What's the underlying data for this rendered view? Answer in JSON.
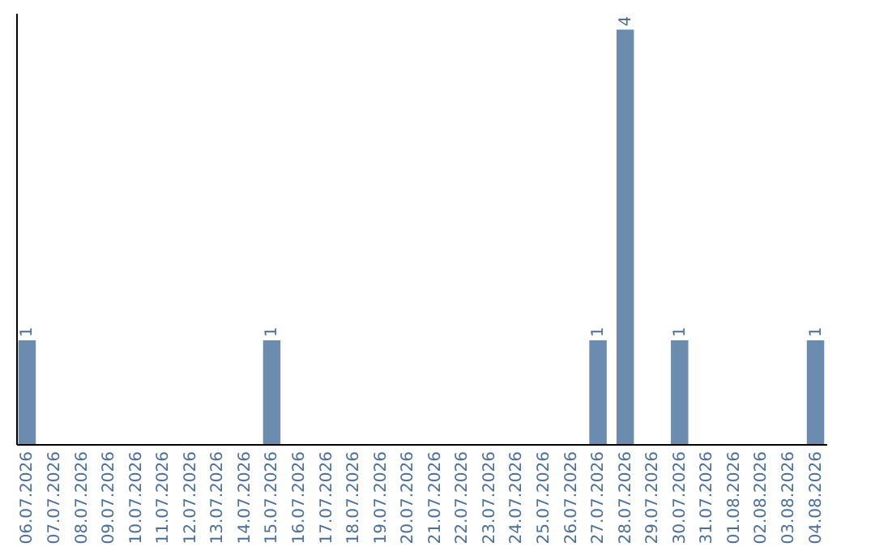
{
  "chart_data": {
    "type": "bar",
    "categories": [
      "06.07.2026",
      "07.07.2026",
      "08.07.2026",
      "09.07.2026",
      "10.07.2026",
      "11.07.2026",
      "12.07.2026",
      "13.07.2026",
      "14.07.2026",
      "15.07.2026",
      "16.07.2026",
      "17.07.2026",
      "18.07.2026",
      "19.07.2026",
      "20.07.2026",
      "21.07.2026",
      "22.07.2026",
      "23.07.2026",
      "24.07.2026",
      "25.07.2026",
      "26.07.2026",
      "27.07.2026",
      "28.07.2026",
      "29.07.2026",
      "30.07.2026",
      "31.07.2026",
      "01.08.2026",
      "02.08.2026",
      "03.08.2026",
      "04.08.2026"
    ],
    "values": [
      1,
      0,
      0,
      0,
      0,
      0,
      0,
      0,
      0,
      1,
      0,
      0,
      0,
      0,
      0,
      0,
      0,
      0,
      0,
      0,
      0,
      1,
      4,
      0,
      1,
      0,
      0,
      0,
      0,
      1
    ],
    "value_labels": [
      "1",
      null,
      null,
      null,
      null,
      null,
      null,
      null,
      null,
      "1",
      null,
      null,
      null,
      null,
      null,
      null,
      null,
      null,
      null,
      null,
      null,
      "1",
      "4",
      null,
      "1",
      null,
      null,
      null,
      null,
      "1"
    ],
    "color": "#6b8cae"
  }
}
